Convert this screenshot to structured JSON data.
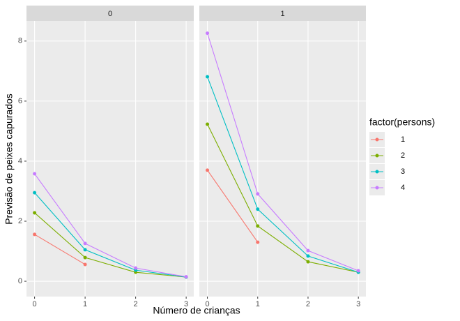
{
  "chart_data": {
    "type": "line",
    "xlabel": "Número de crianças",
    "ylabel": "Previsão de peixes capurados",
    "legend_title": "factor(persons)",
    "legend": "right",
    "grid": true,
    "x": [
      0,
      1,
      2,
      3
    ],
    "xlim": [
      -0.16,
      3.15
    ],
    "ylim": [
      -0.51,
      8.67
    ],
    "xticks": [
      0,
      1,
      2,
      3
    ],
    "yticks": [
      0,
      2,
      4,
      6,
      8
    ],
    "series": [
      {
        "name": "1",
        "color": "#F8766D"
      },
      {
        "name": "2",
        "color": "#7CAE00"
      },
      {
        "name": "3",
        "color": "#00BFC4"
      },
      {
        "name": "4",
        "color": "#C77CFF"
      }
    ],
    "facets": [
      {
        "title": "0",
        "series": [
          {
            "values": [
              1.56,
              0.56,
              null,
              null
            ]
          },
          {
            "values": [
              2.28,
              0.79,
              0.3,
              0.14
            ]
          },
          {
            "values": [
              2.95,
              1.05,
              0.37,
              0.14
            ]
          },
          {
            "values": [
              3.58,
              1.26,
              0.44,
              0.15
            ]
          }
        ]
      },
      {
        "title": "1",
        "series": [
          {
            "values": [
              3.7,
              1.3,
              null,
              null
            ]
          },
          {
            "values": [
              5.23,
              1.84,
              0.65,
              0.3
            ]
          },
          {
            "values": [
              6.81,
              2.4,
              0.84,
              0.3
            ]
          },
          {
            "values": [
              8.26,
              2.91,
              1.02,
              0.35
            ]
          }
        ]
      }
    ]
  }
}
